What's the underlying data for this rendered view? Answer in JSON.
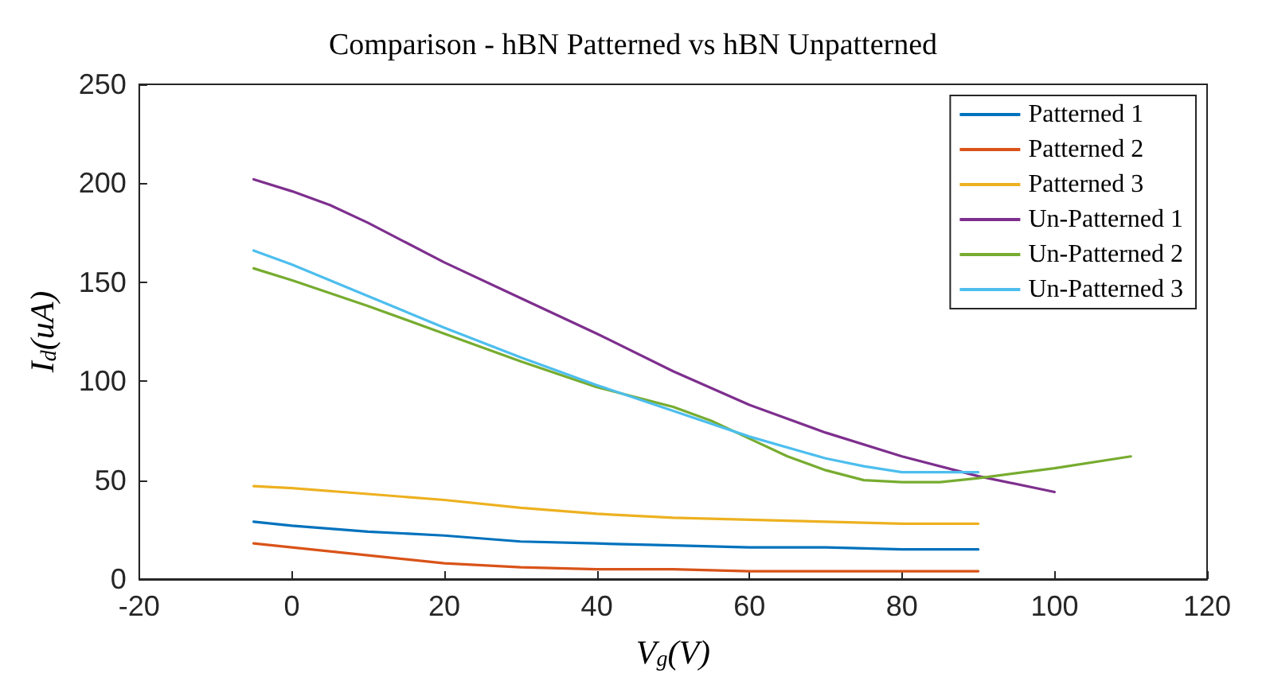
{
  "chart_data": {
    "type": "line",
    "title": "Comparison - hBN Patterned vs hBN Unpatterned",
    "xlabel": "V$_{g}$(V)",
    "ylabel": "I$_{d}$(uA)",
    "xlim": [
      -20,
      120
    ],
    "xticks": [
      -20,
      0,
      20,
      40,
      60,
      80,
      100,
      120
    ],
    "ylim": [
      0,
      250
    ],
    "yticks": [
      0,
      50,
      100,
      150,
      200,
      250
    ],
    "grid": false,
    "legend": "top right",
    "marker": "none",
    "line_style": "solid",
    "series": [
      {
        "name": "Patterned 1",
        "color": "#0072bd",
        "x": [
          -5,
          0,
          10,
          20,
          30,
          40,
          50,
          60,
          70,
          80,
          90
        ],
        "values": [
          29,
          27,
          24,
          22,
          19,
          18,
          17,
          16,
          16,
          15,
          15
        ]
      },
      {
        "name": "Patterned 2",
        "color": "#d95319",
        "x": [
          -5,
          0,
          10,
          20,
          30,
          40,
          50,
          60,
          70,
          80,
          90
        ],
        "values": [
          18,
          16,
          12,
          8,
          6,
          5,
          5,
          4,
          4,
          4,
          4
        ]
      },
      {
        "name": "Patterned 3",
        "color": "#edb120",
        "x": [
          -5,
          0,
          10,
          20,
          30,
          40,
          50,
          60,
          70,
          80,
          90
        ],
        "values": [
          47,
          46,
          43,
          40,
          36,
          33,
          31,
          30,
          29,
          28,
          28
        ]
      },
      {
        "name": "Un-Patterned 1",
        "color": "#7e2f8e",
        "x": [
          -5,
          0,
          5,
          10,
          20,
          30,
          40,
          50,
          60,
          70,
          80,
          90,
          100
        ],
        "values": [
          202,
          196,
          189,
          180,
          160,
          142,
          124,
          105,
          88,
          74,
          62,
          52,
          44
        ]
      },
      {
        "name": "Un-Patterned 2",
        "color": "#77ac30",
        "x": [
          -5,
          0,
          10,
          20,
          30,
          40,
          50,
          55,
          60,
          65,
          70,
          75,
          80,
          85,
          90,
          100,
          110
        ],
        "values": [
          157,
          151,
          138,
          124,
          110,
          97,
          87,
          80,
          71,
          62,
          55,
          50,
          49,
          49,
          51,
          56,
          62
        ]
      },
      {
        "name": "Un-Patterned 3",
        "color": "#4dbeee",
        "x": [
          -5,
          0,
          10,
          20,
          30,
          40,
          50,
          60,
          70,
          75,
          80,
          85,
          90
        ],
        "values": [
          166,
          159,
          143,
          127,
          112,
          98,
          85,
          72,
          61,
          57,
          54,
          54,
          54
        ]
      }
    ]
  }
}
